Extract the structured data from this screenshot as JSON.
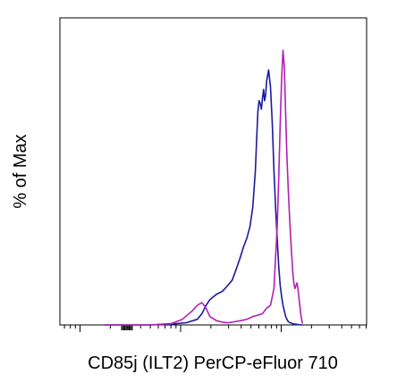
{
  "chart_data": {
    "type": "line",
    "title": "",
    "xlabel": "CD85j (ILT2) PerCP-eFluor 710",
    "ylabel": "% of Max",
    "x_scale": "log",
    "x_major_ticks": [
      1,
      10,
      100,
      1000
    ],
    "x_minor_ticks": [
      0.7,
      0.8,
      0.9,
      2,
      3,
      4,
      5,
      6,
      7,
      8,
      9,
      20,
      30,
      40,
      50,
      60,
      70,
      80,
      90,
      200,
      300,
      400,
      500,
      600,
      700,
      800,
      900,
      2000,
      3000,
      4000,
      5000,
      6000,
      7000,
      8000,
      9000
    ],
    "x_cluster_ticks": [
      -10,
      -8,
      -6,
      -4,
      -2,
      0,
      2,
      4,
      6,
      8,
      10
    ],
    "xlim": [
      -150,
      30000
    ],
    "ylim": [
      0,
      100
    ],
    "grid": false,
    "series": [
      {
        "color": "#1a1aa0",
        "x": [
          -150,
          50,
          150,
          250,
          350,
          450,
          500,
          550,
          600,
          700,
          800,
          900,
          1000,
          1100,
          1200,
          1300,
          1400,
          1500,
          1600,
          1700,
          1750,
          1800,
          1850,
          1900,
          1950,
          2000,
          2050,
          2100,
          2150,
          2200,
          2300,
          2400,
          2500,
          2600,
          2700,
          2800,
          2900,
          3000,
          3100,
          3200,
          3300,
          3400,
          3500,
          3600,
          3750,
          3900,
          4050,
          4200,
          4400,
          4600,
          4800,
          5000
        ],
        "y": [
          0,
          0,
          0,
          0.3,
          0.8,
          2,
          4,
          7,
          9,
          11,
          12,
          14,
          16,
          20,
          24,
          28,
          31,
          35,
          42,
          55,
          66,
          76,
          80,
          79,
          77,
          81,
          84,
          80,
          82,
          87,
          91,
          85,
          72,
          55,
          42,
          31,
          21,
          14,
          10,
          7,
          5,
          3,
          2,
          1.2,
          0.8,
          0.6,
          0.4,
          0.3,
          0.2,
          0.1,
          0,
          0
        ]
      },
      {
        "color": "#b41eb4",
        "x": [
          -150,
          50,
          150,
          250,
          320,
          400,
          450,
          500,
          550,
          600,
          700,
          800,
          900,
          1000,
          1200,
          1400,
          1600,
          1800,
          2000,
          2200,
          2400,
          2600,
          2800,
          2900,
          3000,
          3100,
          3200,
          3300,
          3400,
          3500,
          3600,
          3700,
          3800,
          3900,
          4000,
          4100,
          4200,
          4300,
          4400,
          4500,
          4600,
          4700,
          4800,
          4900,
          5000
        ],
        "y": [
          0,
          0,
          0,
          0.5,
          2,
          5,
          7,
          8,
          6,
          3,
          1.5,
          1,
          0.8,
          1,
          1.5,
          2,
          3,
          3.5,
          4,
          6,
          7,
          13,
          35,
          52,
          72,
          88,
          98,
          92,
          75,
          60,
          49,
          40,
          32,
          25,
          19,
          15,
          13,
          14,
          15,
          13,
          10,
          7,
          4,
          2,
          0.5
        ]
      }
    ]
  }
}
